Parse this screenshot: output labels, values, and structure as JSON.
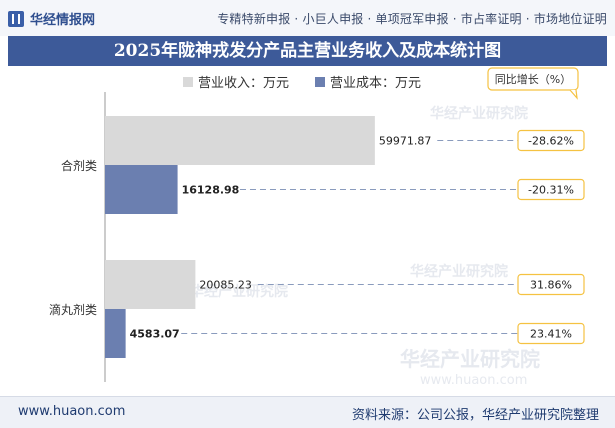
{
  "header": {
    "logo_text": "华经情报网",
    "tags": "专精特新申报 · 小巨人申报 · 单项冠军申报 · 市占率证明 · 市场地位证明"
  },
  "chart_title": "2025年陇神戎发分产品主营业务收入及成本统计图",
  "footer": {
    "website": "www.huaon.com",
    "source": "资料来源：公司公报，华经产业研究院整理"
  },
  "watermark": {
    "cn": "华经产业研究院",
    "en": "www.huaon.com"
  },
  "colors": {
    "revenue": "#d9d9d9",
    "cost": "#6b7fb0",
    "growth_border": "#f5c242",
    "title_bg": "#3d5a99"
  },
  "chart_data": {
    "type": "bar",
    "orientation": "horizontal",
    "title": "2025年陇神戎发分产品主营业务收入及成本统计图",
    "categories": [
      "合剂类",
      "滴丸剂类"
    ],
    "series": [
      {
        "name": "营业收入：万元",
        "values": [
          59971.87,
          20085.23
        ],
        "value_labels": [
          "59971.87",
          "20085.23"
        ]
      },
      {
        "name": "营业成本：万元",
        "values": [
          16128.98,
          4583.07
        ],
        "value_labels": [
          "16128.98",
          "4583.07"
        ]
      }
    ],
    "growth_label": "同比增长（%）",
    "growth": [
      {
        "category": "合剂类",
        "series": "营业收入：万元",
        "value": -28.62,
        "label": "-28.62%"
      },
      {
        "category": "合剂类",
        "series": "营业成本：万元",
        "value": -20.31,
        "label": "-20.31%"
      },
      {
        "category": "滴丸剂类",
        "series": "营业收入：万元",
        "value": 31.86,
        "label": "31.86%"
      },
      {
        "category": "滴丸剂类",
        "series": "营业成本：万元",
        "value": 23.41,
        "label": "23.41%"
      }
    ],
    "xlim": [
      0,
      100000
    ],
    "legend_position": "top",
    "grid": false
  }
}
